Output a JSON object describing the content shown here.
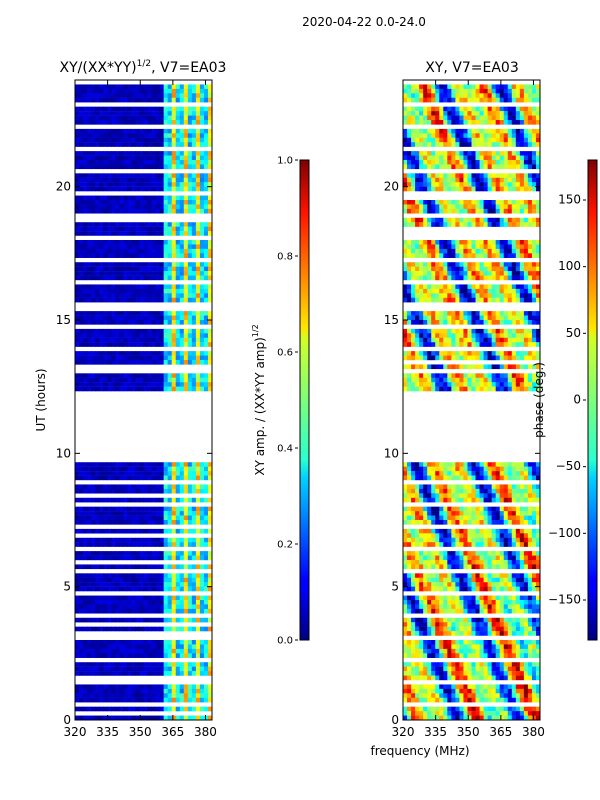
{
  "figure_title": "2020-04-22 0.0-24.0",
  "chart_data": [
    {
      "type": "heatmap",
      "title": "XY/(XX*YY)¹ᐟ², V7=EA03",
      "title_main": "XY/(XX*YY)",
      "title_sup": "1/2",
      "title_tail": ", V7=EA03",
      "xlabel": "",
      "ylabel": "UT (hours)",
      "xlim": [
        320,
        383
      ],
      "ylim": [
        0,
        24
      ],
      "xticks": [
        320,
        335,
        350,
        365,
        380
      ],
      "yticks": [
        0,
        5,
        10,
        15,
        20
      ],
      "colormap": "jet",
      "colorbar": {
        "label_main": "XY amp. / (XX*YY amp)",
        "label_sup": "1/2",
        "range": [
          0.0,
          1.0
        ],
        "ticks": [
          "0.0",
          "0.2",
          "0.4",
          "0.6",
          "0.8",
          "1.0"
        ],
        "tick_values": [
          0.0,
          0.2,
          0.4,
          0.6,
          0.8,
          1.0
        ]
      },
      "no_data_ut_ranges": [
        [
          9.8,
          12.3
        ],
        [
          15.4,
          15.6
        ]
      ],
      "bright_band_mhz": [
        360,
        383
      ]
    },
    {
      "type": "heatmap",
      "title": "XY, V7=EA03",
      "xlabel": "frequency (MHz)",
      "ylabel": "",
      "xlim": [
        320,
        383
      ],
      "ylim": [
        0,
        24
      ],
      "xticks": [
        320,
        335,
        350,
        365,
        380
      ],
      "yticks": [
        0,
        5,
        10,
        15,
        20
      ],
      "colormap": "jet",
      "colorbar": {
        "label": "phase (deg.)",
        "range": [
          -180,
          180
        ],
        "ticks": [
          "−150",
          "−100",
          "−50",
          "0",
          "50",
          "100",
          "150"
        ],
        "tick_values": [
          -150,
          -100,
          -50,
          0,
          50,
          100,
          150
        ]
      },
      "no_data_ut_ranges": [
        [
          9.8,
          12.3
        ],
        [
          15.4,
          15.6
        ]
      ]
    }
  ]
}
